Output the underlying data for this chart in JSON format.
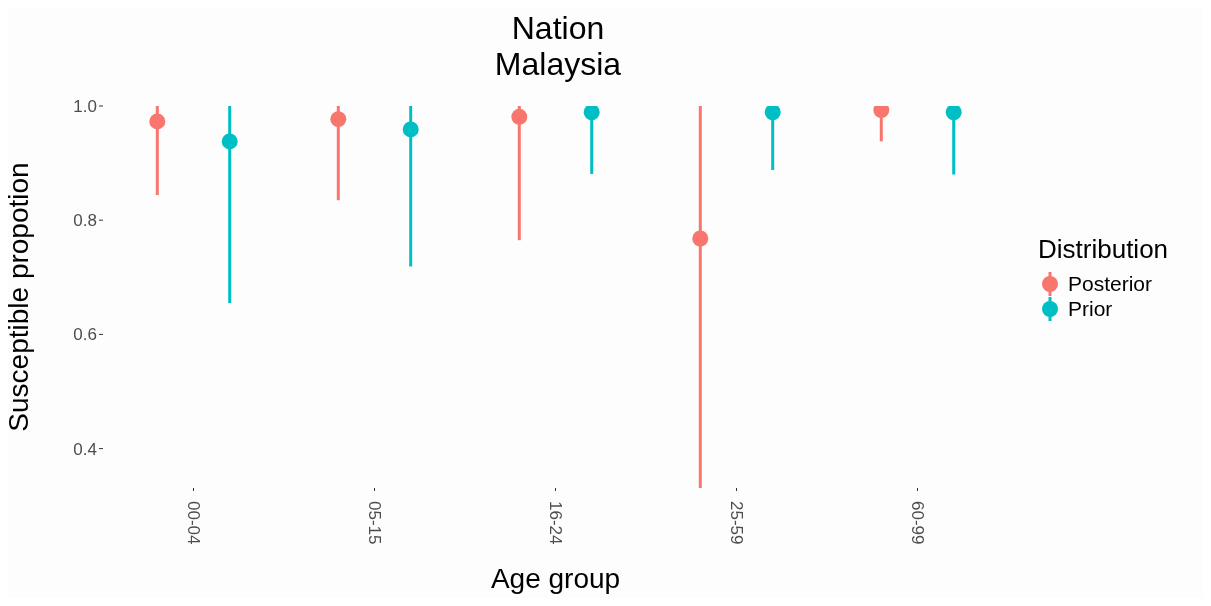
{
  "chart_data": {
    "type": "scatter",
    "title": "Nation\nMalaysia",
    "xlabel": "Age group",
    "ylabel": "Susceptible propotion",
    "legend_title": "Distribution",
    "categories": [
      "00-04",
      "05-15",
      "16-24",
      "25-59",
      "60-99"
    ],
    "series": [
      {
        "name": "Posterior",
        "color": "#f8766d",
        "values": [
          0.973,
          0.977,
          0.981,
          0.768,
          0.993
        ],
        "errors": [
          [
            0.844,
            1.0
          ],
          [
            0.835,
            1.0
          ],
          [
            0.765,
            1.0
          ],
          [
            0.331,
            1.0
          ],
          [
            0.938,
            1.0
          ]
        ]
      },
      {
        "name": "Prior",
        "color": "#00bfc4",
        "values": [
          0.938,
          0.959,
          0.989,
          0.989,
          0.989
        ],
        "errors": [
          [
            0.655,
            1.0
          ],
          [
            0.719,
            1.0
          ],
          [
            0.881,
            1.0
          ],
          [
            0.888,
            1.0
          ],
          [
            0.88,
            1.0
          ]
        ]
      }
    ],
    "ylim": [
      0.331,
      1.0
    ],
    "yticks": [
      {
        "value": 1.0,
        "label": "1.0"
      },
      0.8,
      0.6,
      0.4
    ],
    "legend": "right",
    "marker": "circle"
  }
}
